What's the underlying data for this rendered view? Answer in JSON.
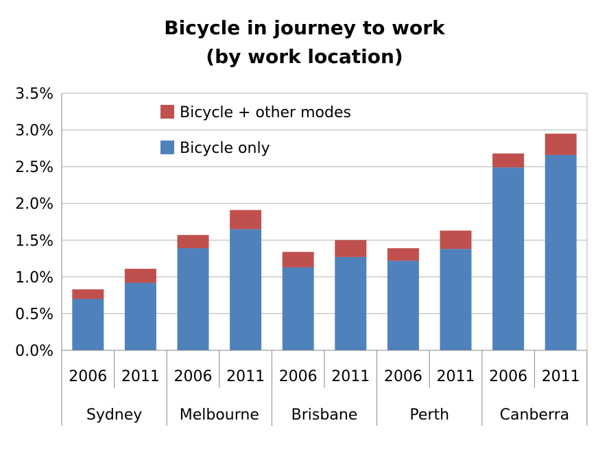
{
  "chart_data": {
    "type": "bar",
    "stacked": true,
    "title": [
      "Bicycle in journey to work",
      "(by work location)"
    ],
    "xlabel": "",
    "ylabel": "",
    "ylim": [
      0,
      0.035
    ],
    "yticks": [
      "0.0%",
      "0.5%",
      "1.0%",
      "1.5%",
      "2.0%",
      "2.5%",
      "3.0%",
      "3.5%"
    ],
    "ytick_values": [
      0,
      0.005,
      0.01,
      0.015,
      0.02,
      0.025,
      0.03,
      0.035
    ],
    "grid": true,
    "legend_position": "top-left inside plot",
    "groups": [
      "Sydney",
      "Melbourne",
      "Brisbane",
      "Perth",
      "Canberra"
    ],
    "categories": [
      "2006",
      "2011",
      "2006",
      "2011",
      "2006",
      "2011",
      "2006",
      "2011",
      "2006",
      "2011"
    ],
    "series": [
      {
        "name": "Bicycle only",
        "color": "#4f81bd",
        "values": [
          0.007,
          0.0092,
          0.0139,
          0.0165,
          0.0113,
          0.0127,
          0.0122,
          0.0138,
          0.0249,
          0.0266
        ]
      },
      {
        "name": "Bicycle + other modes",
        "color": "#c0504d",
        "values": [
          0.0013,
          0.0019,
          0.0018,
          0.0026,
          0.0021,
          0.0023,
          0.0017,
          0.0025,
          0.0019,
          0.0029
        ]
      }
    ]
  }
}
